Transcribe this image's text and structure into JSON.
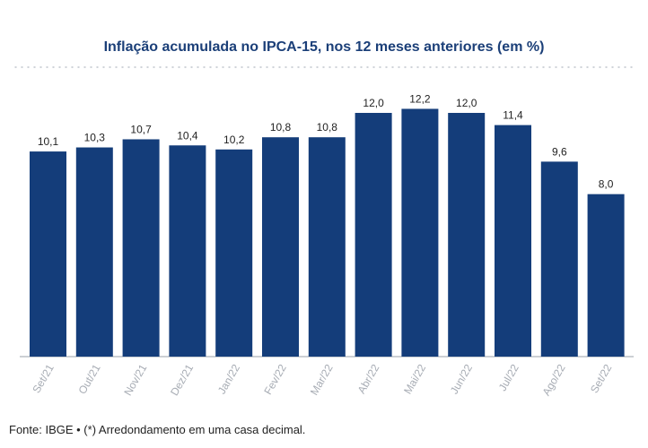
{
  "chart_data": {
    "type": "bar",
    "title": "Inflação acumulada no IPCA-15, nos 12 meses anteriores (em %)",
    "categories": [
      "Set/21",
      "Out/21",
      "Nov/21",
      "Dez/21",
      "Jan/22",
      "Fev/22",
      "Mar/22",
      "Abr/22",
      "Mai/22",
      "Jun/22",
      "Jul/22",
      "Ago/22",
      "Set/22"
    ],
    "values": [
      10.1,
      10.3,
      10.7,
      10.4,
      10.2,
      10.8,
      10.8,
      12.0,
      12.2,
      12.0,
      11.4,
      9.6,
      8.0
    ],
    "value_labels": [
      "10,1",
      "10,3",
      "10,7",
      "10,4",
      "10,2",
      "10,8",
      "10,8",
      "12,0",
      "12,2",
      "12,0",
      "11,4",
      "9,6",
      "8,0"
    ],
    "ylim": [
      0,
      13.5
    ],
    "grid": false,
    "bar_color": "#143d7a"
  },
  "footer": "Fonte: IBGE • (*) Arredondamento em uma casa decimal."
}
